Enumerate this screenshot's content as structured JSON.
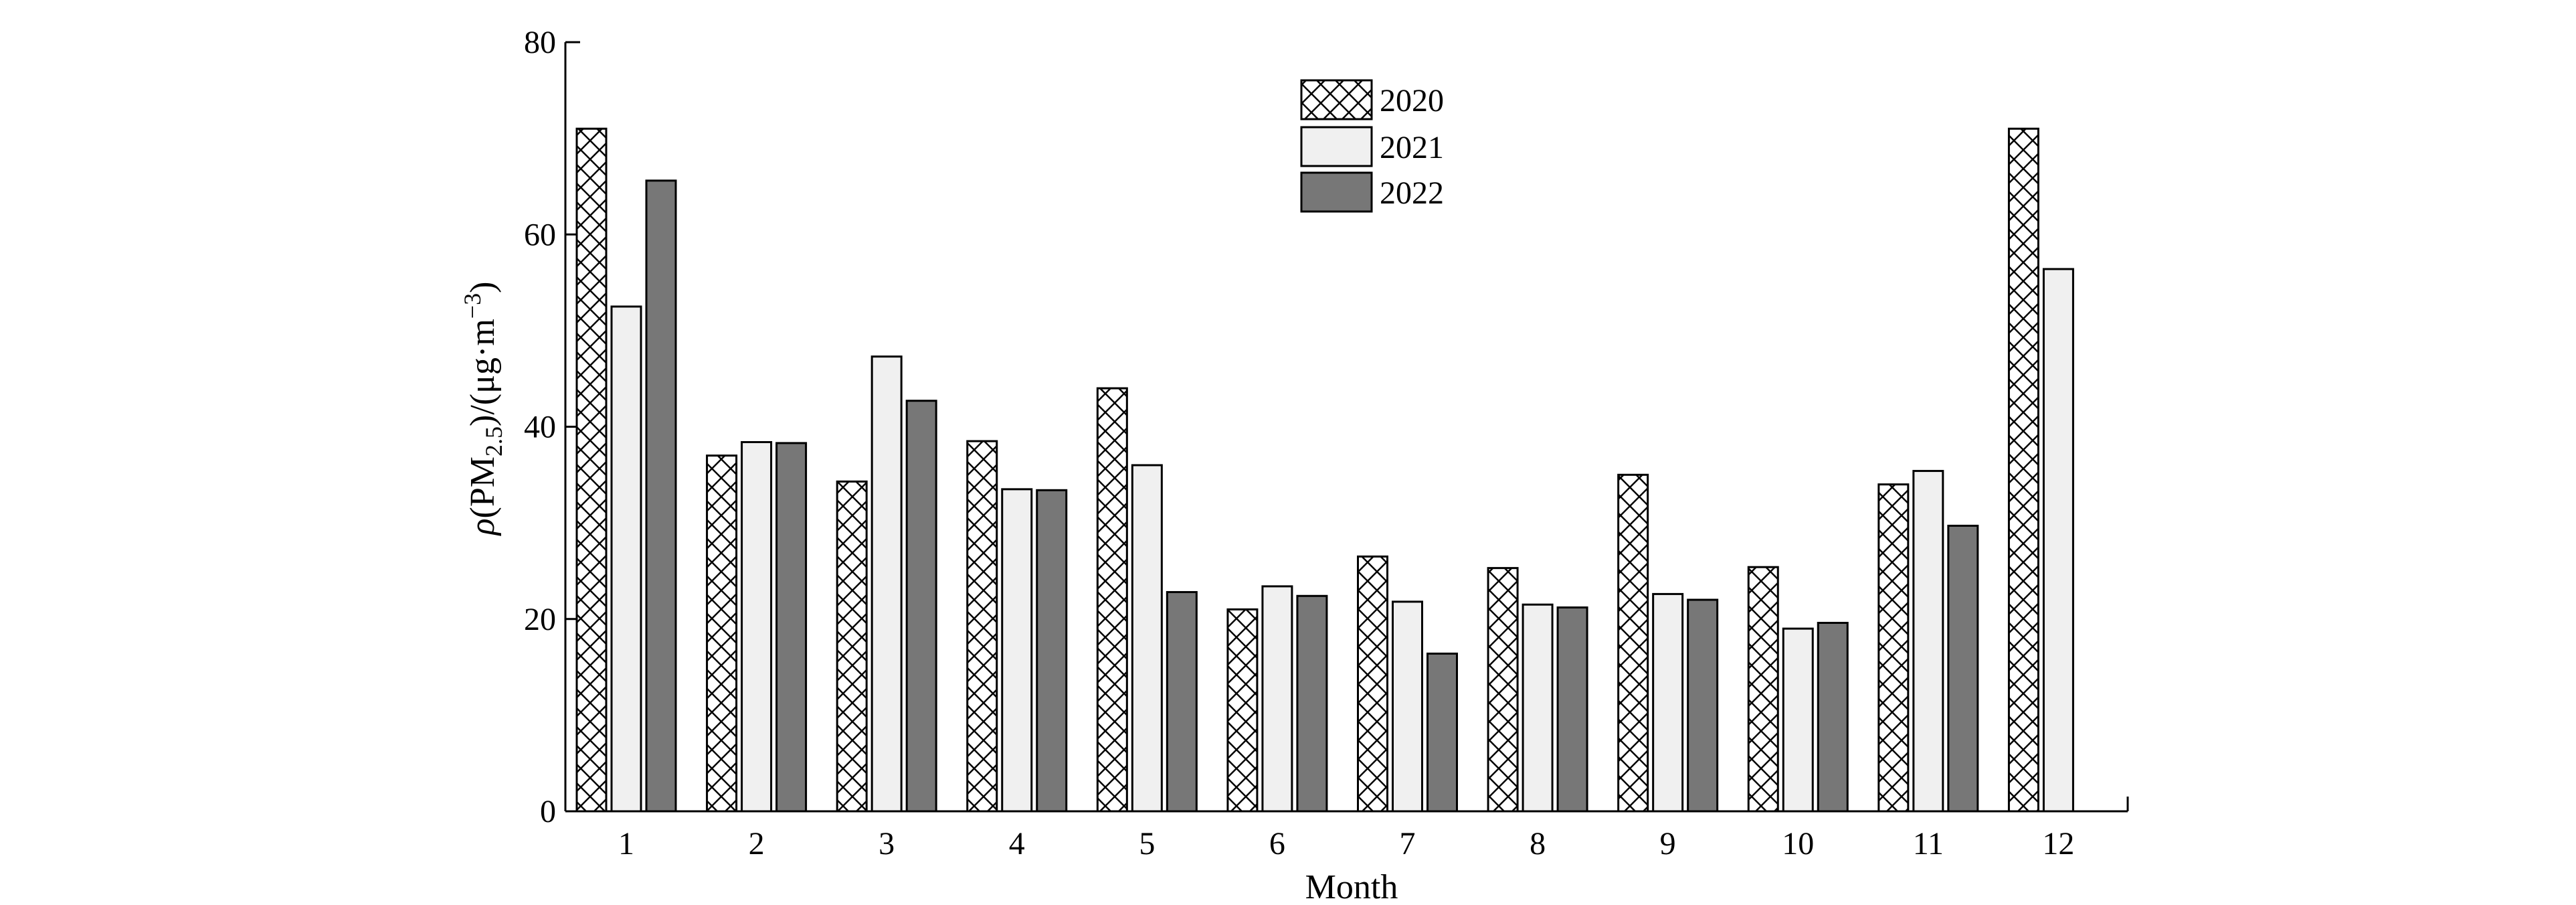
{
  "chart_data": {
    "type": "bar",
    "title": "",
    "xlabel": "Month",
    "ylabel": {
      "symbol": "ρ",
      "open": "(PM",
      "subscript": "2.5",
      "middle": ")/(μg·m",
      "superscript": "−3",
      "close": ")"
    },
    "ylim": [
      0,
      80
    ],
    "yticks": [
      "0",
      "20",
      "40",
      "60",
      "80"
    ],
    "categories": [
      "1",
      "2",
      "3",
      "4",
      "5",
      "6",
      "7",
      "8",
      "9",
      "10",
      "11",
      "12"
    ],
    "legend_position": "top-center",
    "series": [
      {
        "name": "2020",
        "pattern": "crosshatch",
        "color": "#ffffff",
        "values": [
          71,
          37,
          34.3,
          38.5,
          44,
          21,
          26.5,
          25.3,
          35,
          25.4,
          34,
          71
        ]
      },
      {
        "name": "2021",
        "pattern": "solid",
        "color": "#f0f0f0",
        "values": [
          52.5,
          38.4,
          47.3,
          33.5,
          36,
          23.4,
          21.8,
          21.5,
          22.6,
          19,
          35.4,
          56.4
        ]
      },
      {
        "name": "2022",
        "pattern": "solid",
        "color": "#777777",
        "values": [
          65.6,
          38.3,
          42.7,
          33.4,
          22.8,
          22.4,
          16.4,
          21.2,
          22,
          19.6,
          29.7,
          null
        ]
      }
    ]
  }
}
